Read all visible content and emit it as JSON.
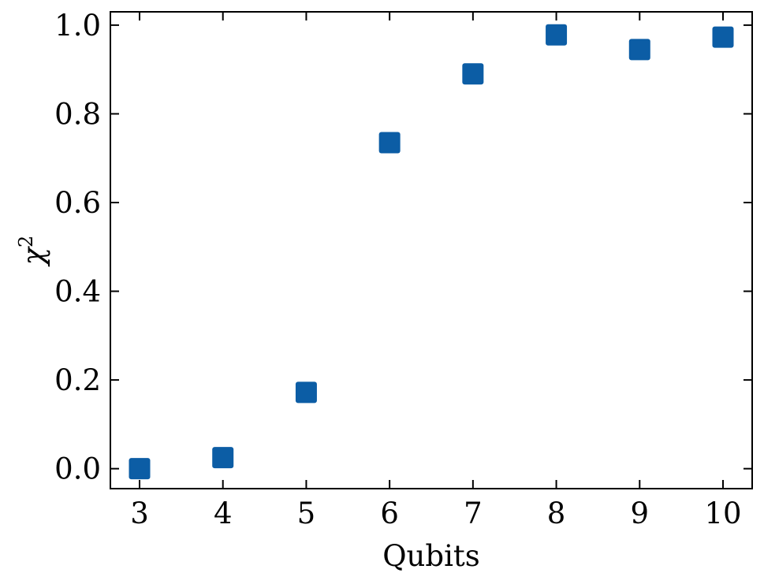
{
  "chart_data": {
    "type": "scatter",
    "xlabel": "Qubits",
    "ylabel": "χ",
    "ylabel_superscript": "2",
    "x": [
      3,
      4,
      5,
      6,
      7,
      8,
      9,
      10
    ],
    "series": [
      {
        "values": [
          0.0,
          0.025,
          0.172,
          0.735,
          0.89,
          0.978,
          0.945,
          0.973
        ],
        "marker": "square",
        "color": "#0c5da5"
      }
    ],
    "xlim": [
      2.65,
      10.35
    ],
    "ylim": [
      -0.045,
      1.03
    ],
    "xticks": [
      3,
      4,
      5,
      6,
      7,
      8,
      9,
      10
    ],
    "xtick_labels": [
      "3",
      "4",
      "5",
      "6",
      "7",
      "8",
      "9",
      "10"
    ],
    "yticks": [
      0.0,
      0.2,
      0.4,
      0.6,
      0.8,
      1.0
    ],
    "ytick_labels": [
      "0.0",
      "0.2",
      "0.4",
      "0.6",
      "0.8",
      "1.0"
    ],
    "grid": false,
    "legend": "none",
    "tick_direction": "in",
    "colors": {
      "marker": "#0c5da5",
      "axes": "#000000",
      "background": "#ffffff"
    }
  }
}
